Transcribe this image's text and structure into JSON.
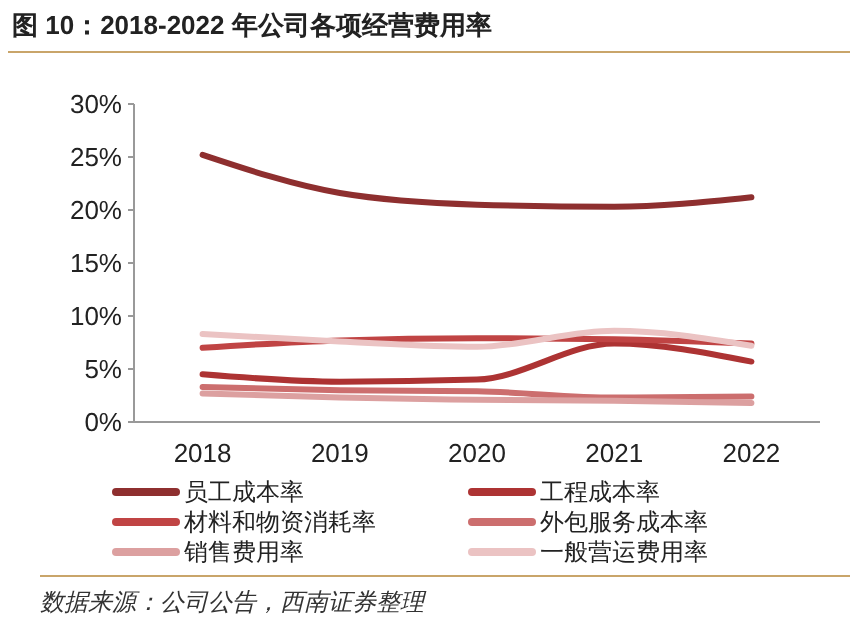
{
  "chart_data": {
    "type": "line",
    "title": "图 10：2018-2022 年公司各项经营费用率",
    "categories": [
      "2018",
      "2019",
      "2020",
      "2021",
      "2022"
    ],
    "series": [
      {
        "name": "员工成本率",
        "color": "#8e2f2f",
        "values": [
          25.2,
          21.6,
          20.5,
          20.3,
          21.2
        ]
      },
      {
        "name": "工程成本率",
        "color": "#ad3333",
        "values": [
          4.5,
          3.8,
          4.0,
          7.4,
          5.7
        ]
      },
      {
        "name": "材料和物资消耗率",
        "color": "#c04444",
        "values": [
          7.0,
          7.7,
          7.9,
          7.8,
          7.4
        ]
      },
      {
        "name": "外包服务成本率",
        "color": "#cc6e6e",
        "values": [
          3.3,
          3.0,
          2.9,
          2.3,
          2.4
        ]
      },
      {
        "name": "销售费用率",
        "color": "#dca0a0",
        "values": [
          2.7,
          2.3,
          2.1,
          2.0,
          1.8
        ]
      },
      {
        "name": "一般营运费用率",
        "color": "#ebc3c3",
        "values": [
          8.3,
          7.6,
          7.1,
          8.6,
          7.2
        ]
      }
    ],
    "ylim": [
      0,
      30
    ],
    "yticks": [
      {
        "value": 0,
        "label": "0%"
      },
      {
        "value": 5,
        "label": "5%"
      },
      {
        "value": 10,
        "label": "10%"
      },
      {
        "value": 15,
        "label": "15%"
      },
      {
        "value": 20,
        "label": "20%"
      },
      {
        "value": 25,
        "label": "25%"
      },
      {
        "value": 30,
        "label": "30%"
      }
    ],
    "grid": false,
    "legend": "bottom",
    "marker": "none",
    "line_style": "solid",
    "annotations": [
      "数据来源：公司公告，西南证券整理"
    ]
  }
}
